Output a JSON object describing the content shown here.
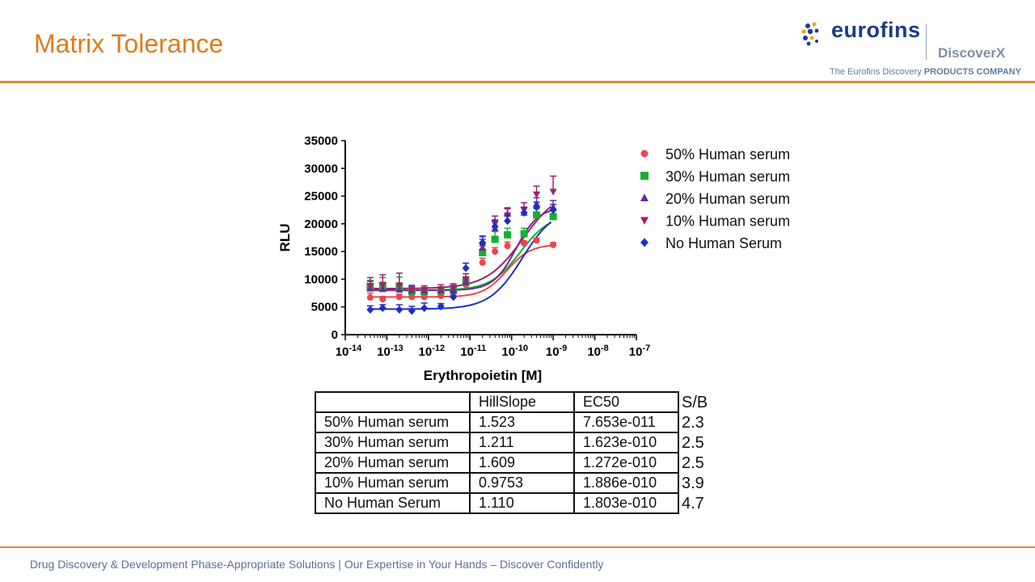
{
  "slide": {
    "title": "Matrix Tolerance",
    "footer": "Drug Discovery & Development Phase-Appropriate Solutions | Our Expertise in Your Hands – Discover Confidently"
  },
  "logo": {
    "name": "eurofins",
    "sub": "DiscoverX",
    "tagline_prefix": "The Eurofins Discovery ",
    "tagline_bold": "PRODUCTS COMPANY",
    "brand_color": "#1b3c87",
    "dot_colors": [
      "#1b3c87",
      "#f0a31b",
      "#1b3c87",
      "#f0a31b"
    ]
  },
  "colors": {
    "accent": "#e07b1a"
  },
  "chart_data": {
    "type": "scatter",
    "xlabel": "Erythropoietin [M]",
    "ylabel": "RLU",
    "xscale": "log",
    "xlim_exponent": [
      -14,
      -7
    ],
    "ylim": [
      0,
      35000
    ],
    "yticks": [
      0,
      5000,
      10000,
      15000,
      20000,
      25000,
      30000,
      35000
    ],
    "xtick_labels": [
      "10 -14",
      "10 -13",
      "10 -12",
      "10 -11",
      "10 -10",
      "10 -9",
      "10 -8",
      "10 -7"
    ],
    "legend_position": "top-right",
    "x_log_values": [
      -13.4,
      -13.1,
      -12.7,
      -12.4,
      -12.1,
      -11.7,
      -11.4,
      -11.1,
      -10.7,
      -10.4,
      -10.1,
      -9.7,
      -9.4,
      -9.0
    ],
    "series": [
      {
        "name": "50% Human serum",
        "marker": "circle",
        "color": "#e8474c",
        "values": [
          6700,
          6400,
          6800,
          6800,
          6800,
          7000,
          7300,
          9000,
          13000,
          15000,
          16000,
          16500,
          17000,
          16200
        ],
        "errors": [
          800,
          500,
          500,
          600,
          400,
          400,
          400,
          500,
          800,
          700,
          700,
          400,
          400,
          400
        ],
        "fit": {
          "bottom": 6800,
          "top": 16300,
          "log_ec50": -10.116,
          "hill": 1.523
        }
      },
      {
        "name": "30% Human serum",
        "marker": "square",
        "color": "#16b030",
        "values": [
          8600,
          8800,
          8600,
          7800,
          7800,
          7900,
          8100,
          9500,
          14800,
          17200,
          18000,
          18200,
          21600,
          21300
        ],
        "errors": [
          1200,
          1500,
          1800,
          800,
          700,
          700,
          600,
          800,
          1200,
          1400,
          1200,
          1000,
          1100,
          1100
        ],
        "fit": {
          "bottom": 8000,
          "top": 21800,
          "log_ec50": -9.79,
          "hill": 1.211
        }
      },
      {
        "name": "20% Human serum",
        "marker": "triangle-up",
        "color": "#6a2a9a",
        "values": [
          8300,
          8200,
          8100,
          8000,
          7900,
          8000,
          8200,
          9500,
          15700,
          19200,
          21800,
          22000,
          23600,
          23000
        ],
        "errors": [
          1300,
          1200,
          1200,
          700,
          600,
          600,
          600,
          900,
          1500,
          1300,
          1100,
          1000,
          1100,
          1200
        ],
        "fit": {
          "bottom": 8000,
          "top": 23000,
          "log_ec50": -9.896,
          "hill": 1.609
        }
      },
      {
        "name": "10% Human serum",
        "marker": "triangle-down",
        "color": "#a0206c",
        "values": [
          8800,
          9000,
          8900,
          8000,
          8000,
          8200,
          8500,
          10000,
          16000,
          20000,
          21500,
          22500,
          25300,
          25800
        ],
        "errors": [
          1500,
          1800,
          2200,
          900,
          800,
          800,
          700,
          1000,
          1800,
          1400,
          1200,
          1300,
          1500,
          2800
        ],
        "fit": {
          "bottom": 8300,
          "top": 26400,
          "log_ec50": -9.724,
          "hill": 0.9753
        }
      },
      {
        "name": "No Human Serum",
        "marker": "diamond",
        "color": "#1c2fc4",
        "values": [
          4500,
          4800,
          4500,
          4300,
          4800,
          5100,
          6800,
          12000,
          16600,
          19500,
          20500,
          22000,
          23000,
          22500
        ],
        "errors": [
          700,
          600,
          900,
          800,
          900,
          500,
          800,
          900,
          1100,
          1200,
          1100,
          900,
          900,
          1000
        ],
        "fit": {
          "bottom": 4600,
          "top": 23000,
          "log_ec50": -9.744,
          "hill": 1.11
        }
      }
    ]
  },
  "table": {
    "headers": [
      "",
      "HillSlope",
      "EC50"
    ],
    "rows": [
      [
        "50% Human serum",
        "1.523",
        "7.653e-011"
      ],
      [
        "30% Human serum",
        "1.211",
        "1.623e-010"
      ],
      [
        "20% Human serum",
        "1.609",
        "1.272e-010"
      ],
      [
        "10% Human serum",
        "0.9753",
        "1.886e-010"
      ],
      [
        "No Human Serum",
        "1.110",
        "1.803e-010"
      ]
    ],
    "sb_header": "S/B",
    "sb_values": [
      "2.3",
      "2.5",
      "2.5",
      "3.9",
      "4.7"
    ]
  }
}
